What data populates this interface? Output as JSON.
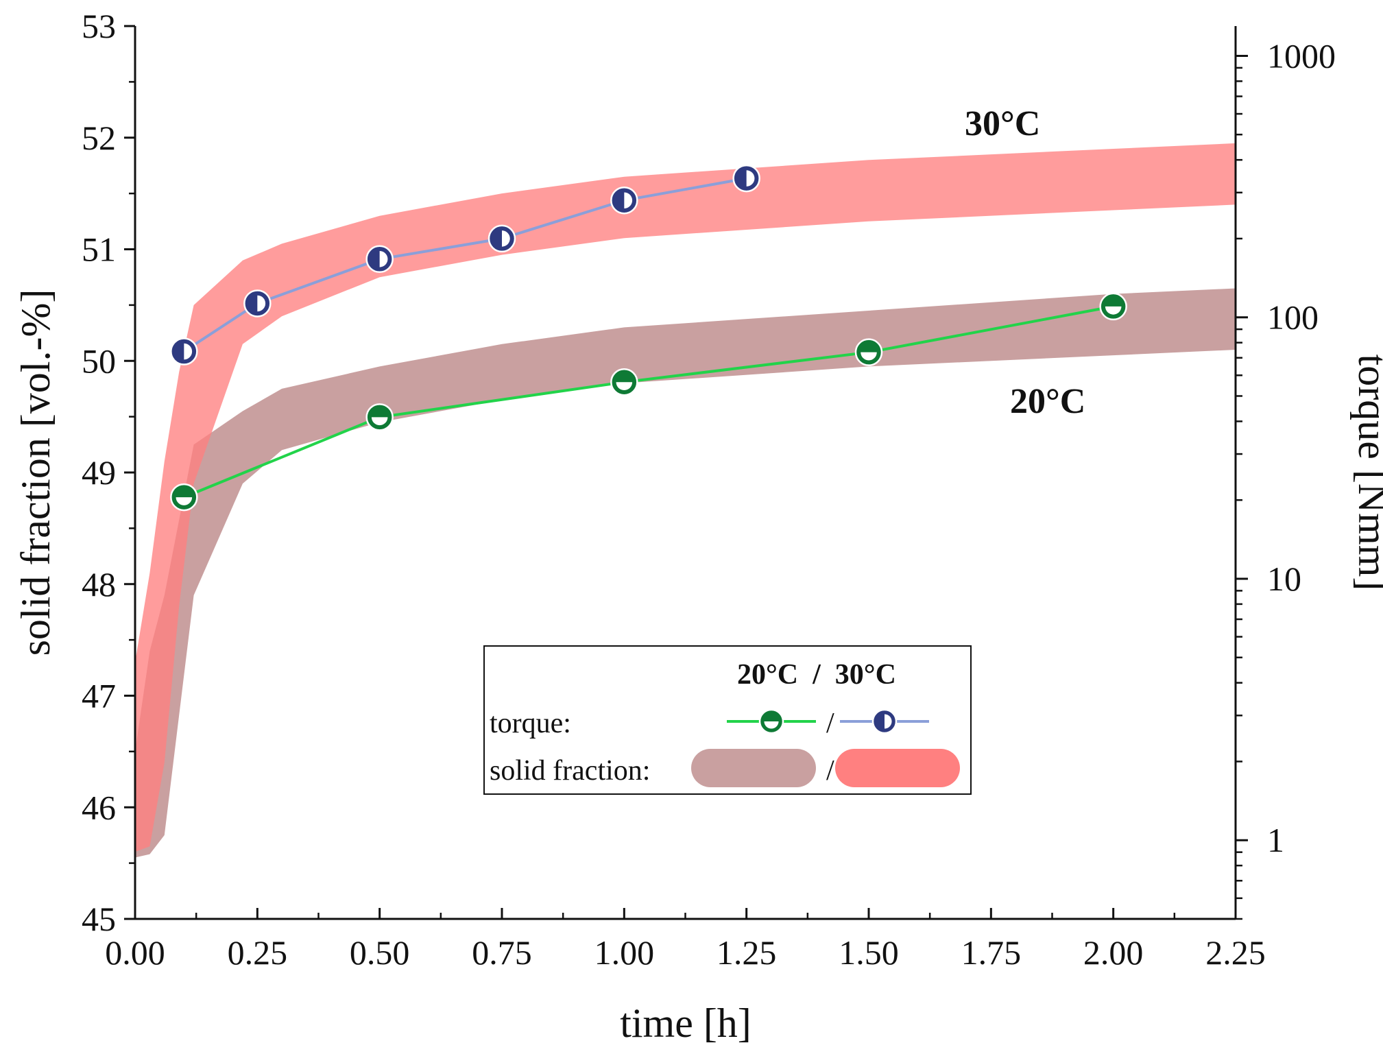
{
  "chart_data": {
    "type": "line",
    "xlabel": "time [h]",
    "ylabel": "solid fraction [vol.-%]",
    "y2label": "torque [Nmm]",
    "xlim": [
      0,
      2.25
    ],
    "ylim": [
      45,
      53
    ],
    "y2lim": [
      0.5,
      1300
    ],
    "y2scale": "log",
    "x_ticks": [
      "0.00",
      "0.25",
      "0.50",
      "0.75",
      "1.00",
      "1.25",
      "1.50",
      "1.75",
      "2.00",
      "2.25"
    ],
    "y_ticks": [
      "45",
      "46",
      "47",
      "48",
      "49",
      "50",
      "51",
      "52",
      "53"
    ],
    "y2_ticks": [
      "1",
      "10",
      "100",
      "1000"
    ],
    "annotations": [
      {
        "text": "30°C",
        "color": "#f07878"
      },
      {
        "text": "20°C",
        "color": "#7a0e0e"
      }
    ],
    "bands": [
      {
        "name": "solid fraction 20°C",
        "color": "#c9a0a0",
        "x": [
          0.0,
          0.03,
          0.06,
          0.12,
          0.22,
          0.3,
          0.5,
          0.75,
          1.0,
          1.5,
          2.0,
          2.25
        ],
        "lower": [
          45.55,
          45.58,
          45.75,
          47.9,
          48.9,
          49.2,
          49.45,
          49.65,
          49.8,
          49.95,
          50.05,
          50.1
        ],
        "upper": [
          46.5,
          47.4,
          47.9,
          49.25,
          49.55,
          49.75,
          49.95,
          50.15,
          50.3,
          50.45,
          50.6,
          50.65
        ]
      },
      {
        "name": "solid fraction 30°C",
        "color": "#ff8080",
        "x": [
          0.0,
          0.03,
          0.06,
          0.09,
          0.12,
          0.22,
          0.3,
          0.5,
          0.75,
          1.0,
          1.5,
          2.0,
          2.25
        ],
        "lower": [
          45.6,
          45.65,
          46.4,
          47.8,
          48.9,
          50.15,
          50.4,
          50.75,
          50.95,
          51.1,
          51.25,
          51.35,
          51.4
        ],
        "upper": [
          47.3,
          48.1,
          49.1,
          49.9,
          50.5,
          50.9,
          51.05,
          51.3,
          51.5,
          51.65,
          51.8,
          51.9,
          51.95
        ]
      }
    ],
    "series": [
      {
        "name": "torque 20°C",
        "axis": "right",
        "line_color": "#22d34a",
        "marker_color": "#0e7a35",
        "marker_fill": "bottom",
        "x": [
          0.1,
          0.5,
          1.0,
          1.5,
          2.0
        ],
        "values": [
          20.5,
          41.5,
          56.5,
          73.5,
          110
        ]
      },
      {
        "name": "torque 30°C",
        "axis": "right",
        "line_color": "#8b9fd9",
        "marker_color": "#2e3a80",
        "marker_fill": "right",
        "x": [
          0.1,
          0.25,
          0.5,
          0.75,
          1.0,
          1.25
        ],
        "values": [
          74,
          113,
          167,
          200,
          280,
          340
        ]
      }
    ],
    "legend": {
      "header": "20°C  /  30°C",
      "rows": [
        {
          "label": "torque:",
          "separator": "/"
        },
        {
          "label": "solid fraction:",
          "separator": "/"
        }
      ],
      "position": "lower-center"
    }
  }
}
